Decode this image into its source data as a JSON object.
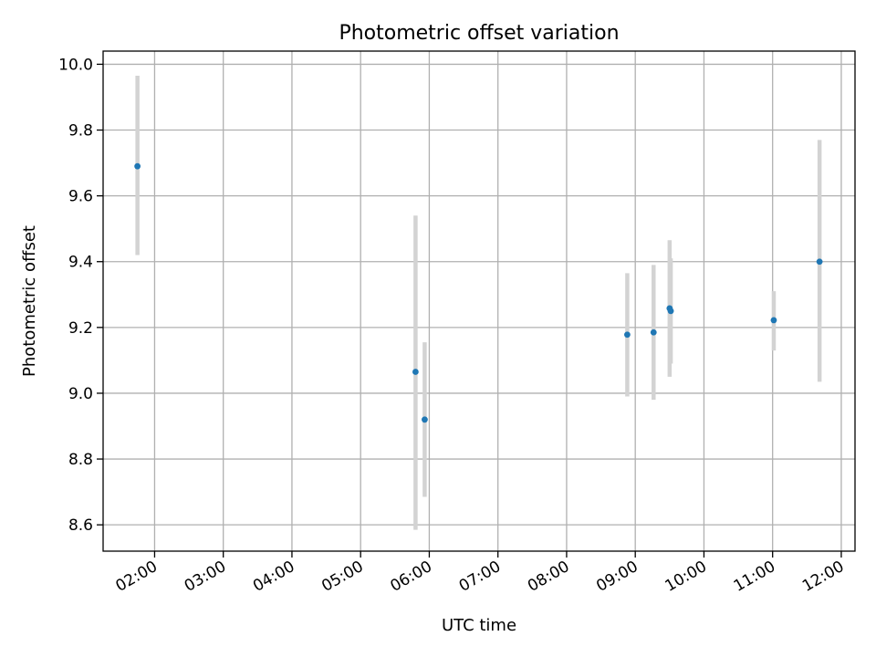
{
  "chart_data": {
    "type": "scatter",
    "title": "Photometric offset variation",
    "xlabel": "UTC time",
    "ylabel": "Photometric offset",
    "x_ticks": [
      "02:00",
      "03:00",
      "04:00",
      "05:00",
      "06:00",
      "07:00",
      "08:00",
      "09:00",
      "10:00",
      "11:00",
      "12:00"
    ],
    "y_ticks": [
      "8.6",
      "8.8",
      "9.0",
      "9.2",
      "9.4",
      "9.6",
      "9.8",
      "10.0"
    ],
    "xlim": [
      "01:15",
      "12:12"
    ],
    "ylim": [
      8.52,
      10.04
    ],
    "grid": true,
    "point_color": "#1f77b4",
    "errorbar_color": "#d3d3d3",
    "points": [
      {
        "x": "01:45",
        "y": 9.69,
        "y_low": 9.42,
        "y_high": 9.965
      },
      {
        "x": "05:48",
        "y": 9.065,
        "y_low": 8.585,
        "y_high": 9.54
      },
      {
        "x": "05:56",
        "y": 8.92,
        "y_low": 8.685,
        "y_high": 9.155
      },
      {
        "x": "08:53",
        "y": 9.178,
        "y_low": 8.99,
        "y_high": 9.365
      },
      {
        "x": "09:16",
        "y": 9.185,
        "y_low": 8.98,
        "y_high": 9.39
      },
      {
        "x": "09:30",
        "y": 9.258,
        "y_low": 9.05,
        "y_high": 9.465
      },
      {
        "x": "09:31",
        "y": 9.25,
        "y_low": 9.09,
        "y_high": 9.41
      },
      {
        "x": "11:01",
        "y": 9.222,
        "y_low": 9.13,
        "y_high": 9.31
      },
      {
        "x": "11:41",
        "y": 9.4,
        "y_low": 9.035,
        "y_high": 9.77
      }
    ]
  }
}
